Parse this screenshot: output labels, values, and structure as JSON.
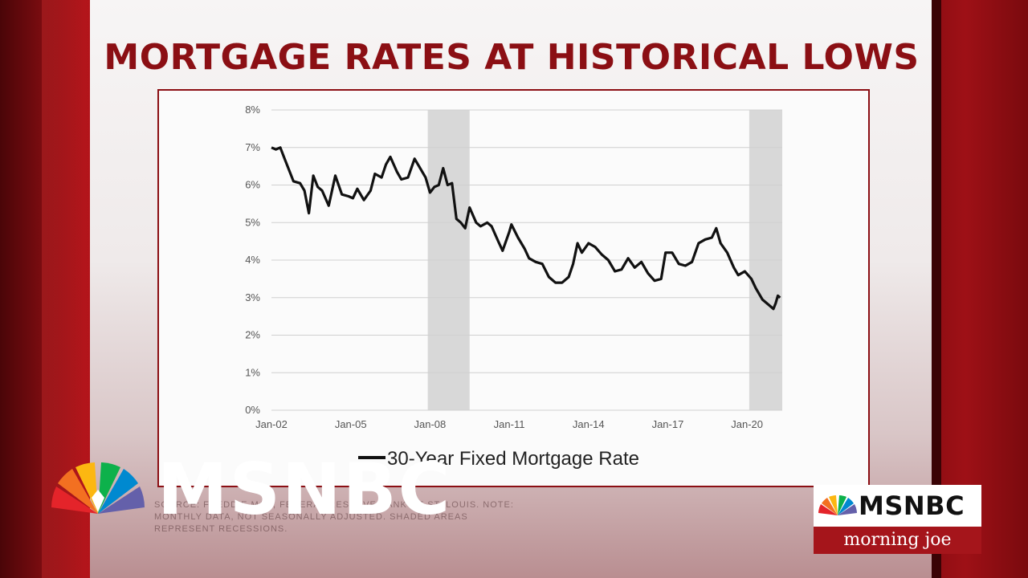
{
  "headline": "MORTGAGE RATES AT HISTORICAL LOWS",
  "source_text": "SOURCE: FREDDIE MAC, FEDERAL RESERVE BANK OF ST. LOUIS. NOTE: MONTHLY DATA, NOT SEASONALLY ADJUSTED. SHADED AREAS REPRESENT RECESSIONS.",
  "watermark_text": "MSNBC",
  "bug": {
    "network": "MSNBC",
    "show": "morning joe"
  },
  "colors": {
    "accent": "#8b0f14",
    "line": "#111111",
    "recession": "#d8d8d8"
  },
  "icons": {
    "peacock": "nbc-peacock-icon"
  },
  "chart_data": {
    "type": "line",
    "title": "MORTGAGE RATES AT HISTORICAL LOWS",
    "xlabel": "",
    "ylabel": "",
    "x_ticks": [
      "Jan-02",
      "Jan-05",
      "Jan-08",
      "Jan-11",
      "Jan-14",
      "Jan-17",
      "Jan-20"
    ],
    "y_ticks": [
      "0%",
      "1%",
      "2%",
      "3%",
      "4%",
      "5%",
      "6%",
      "7%",
      "8%"
    ],
    "ylim": [
      0,
      8
    ],
    "xlim": [
      "2002-01",
      "2021-04"
    ],
    "grid": true,
    "legend": "bottom",
    "recessions": [
      {
        "start": "2007-12",
        "end": "2009-06"
      },
      {
        "start": "2020-02",
        "end": "2021-04"
      }
    ],
    "series": [
      {
        "name": "30-Year Fixed Mortgage Rate",
        "points": [
          [
            "2002-01",
            7.0
          ],
          [
            "2002-03",
            6.95
          ],
          [
            "2002-05",
            7.0
          ],
          [
            "2002-07",
            6.7
          ],
          [
            "2002-09",
            6.4
          ],
          [
            "2002-11",
            6.1
          ],
          [
            "2003-02",
            6.05
          ],
          [
            "2003-04",
            5.85
          ],
          [
            "2003-06",
            5.25
          ],
          [
            "2003-08",
            6.25
          ],
          [
            "2003-10",
            5.95
          ],
          [
            "2003-12",
            5.85
          ],
          [
            "2004-03",
            5.45
          ],
          [
            "2004-06",
            6.25
          ],
          [
            "2004-09",
            5.75
          ],
          [
            "2004-12",
            5.7
          ],
          [
            "2005-02",
            5.65
          ],
          [
            "2005-04",
            5.9
          ],
          [
            "2005-07",
            5.6
          ],
          [
            "2005-10",
            5.85
          ],
          [
            "2005-12",
            6.3
          ],
          [
            "2006-03",
            6.2
          ],
          [
            "2006-05",
            6.55
          ],
          [
            "2006-07",
            6.75
          ],
          [
            "2006-10",
            6.35
          ],
          [
            "2006-12",
            6.15
          ],
          [
            "2007-03",
            6.2
          ],
          [
            "2007-06",
            6.7
          ],
          [
            "2007-08",
            6.5
          ],
          [
            "2007-11",
            6.2
          ],
          [
            "2008-01",
            5.8
          ],
          [
            "2008-03",
            5.95
          ],
          [
            "2008-05",
            6.0
          ],
          [
            "2008-07",
            6.45
          ],
          [
            "2008-09",
            6.0
          ],
          [
            "2008-11",
            6.05
          ],
          [
            "2009-01",
            5.1
          ],
          [
            "2009-03",
            5.0
          ],
          [
            "2009-05",
            4.85
          ],
          [
            "2009-07",
            5.4
          ],
          [
            "2009-10",
            5.0
          ],
          [
            "2009-12",
            4.9
          ],
          [
            "2010-03",
            5.0
          ],
          [
            "2010-05",
            4.9
          ],
          [
            "2010-08",
            4.5
          ],
          [
            "2010-10",
            4.25
          ],
          [
            "2011-01",
            4.75
          ],
          [
            "2011-02",
            4.95
          ],
          [
            "2011-05",
            4.6
          ],
          [
            "2011-08",
            4.3
          ],
          [
            "2011-10",
            4.05
          ],
          [
            "2012-01",
            3.95
          ],
          [
            "2012-04",
            3.9
          ],
          [
            "2012-07",
            3.55
          ],
          [
            "2012-10",
            3.4
          ],
          [
            "2013-01",
            3.4
          ],
          [
            "2013-04",
            3.55
          ],
          [
            "2013-06",
            3.9
          ],
          [
            "2013-08",
            4.45
          ],
          [
            "2013-10",
            4.2
          ],
          [
            "2014-01",
            4.45
          ],
          [
            "2014-04",
            4.35
          ],
          [
            "2014-07",
            4.15
          ],
          [
            "2014-10",
            4.0
          ],
          [
            "2015-01",
            3.7
          ],
          [
            "2015-04",
            3.75
          ],
          [
            "2015-07",
            4.05
          ],
          [
            "2015-10",
            3.8
          ],
          [
            "2016-01",
            3.95
          ],
          [
            "2016-04",
            3.65
          ],
          [
            "2016-07",
            3.45
          ],
          [
            "2016-10",
            3.5
          ],
          [
            "2016-12",
            4.2
          ],
          [
            "2017-03",
            4.2
          ],
          [
            "2017-06",
            3.9
          ],
          [
            "2017-09",
            3.85
          ],
          [
            "2017-12",
            3.95
          ],
          [
            "2018-03",
            4.45
          ],
          [
            "2018-06",
            4.55
          ],
          [
            "2018-09",
            4.6
          ],
          [
            "2018-11",
            4.85
          ],
          [
            "2019-01",
            4.45
          ],
          [
            "2019-04",
            4.2
          ],
          [
            "2019-07",
            3.8
          ],
          [
            "2019-09",
            3.6
          ],
          [
            "2019-12",
            3.7
          ],
          [
            "2020-03",
            3.5
          ],
          [
            "2020-05",
            3.25
          ],
          [
            "2020-08",
            2.95
          ],
          [
            "2020-11",
            2.8
          ],
          [
            "2021-01",
            2.7
          ],
          [
            "2021-02",
            2.85
          ],
          [
            "2021-03",
            3.05
          ],
          [
            "2021-04",
            3.0
          ]
        ]
      }
    ]
  }
}
